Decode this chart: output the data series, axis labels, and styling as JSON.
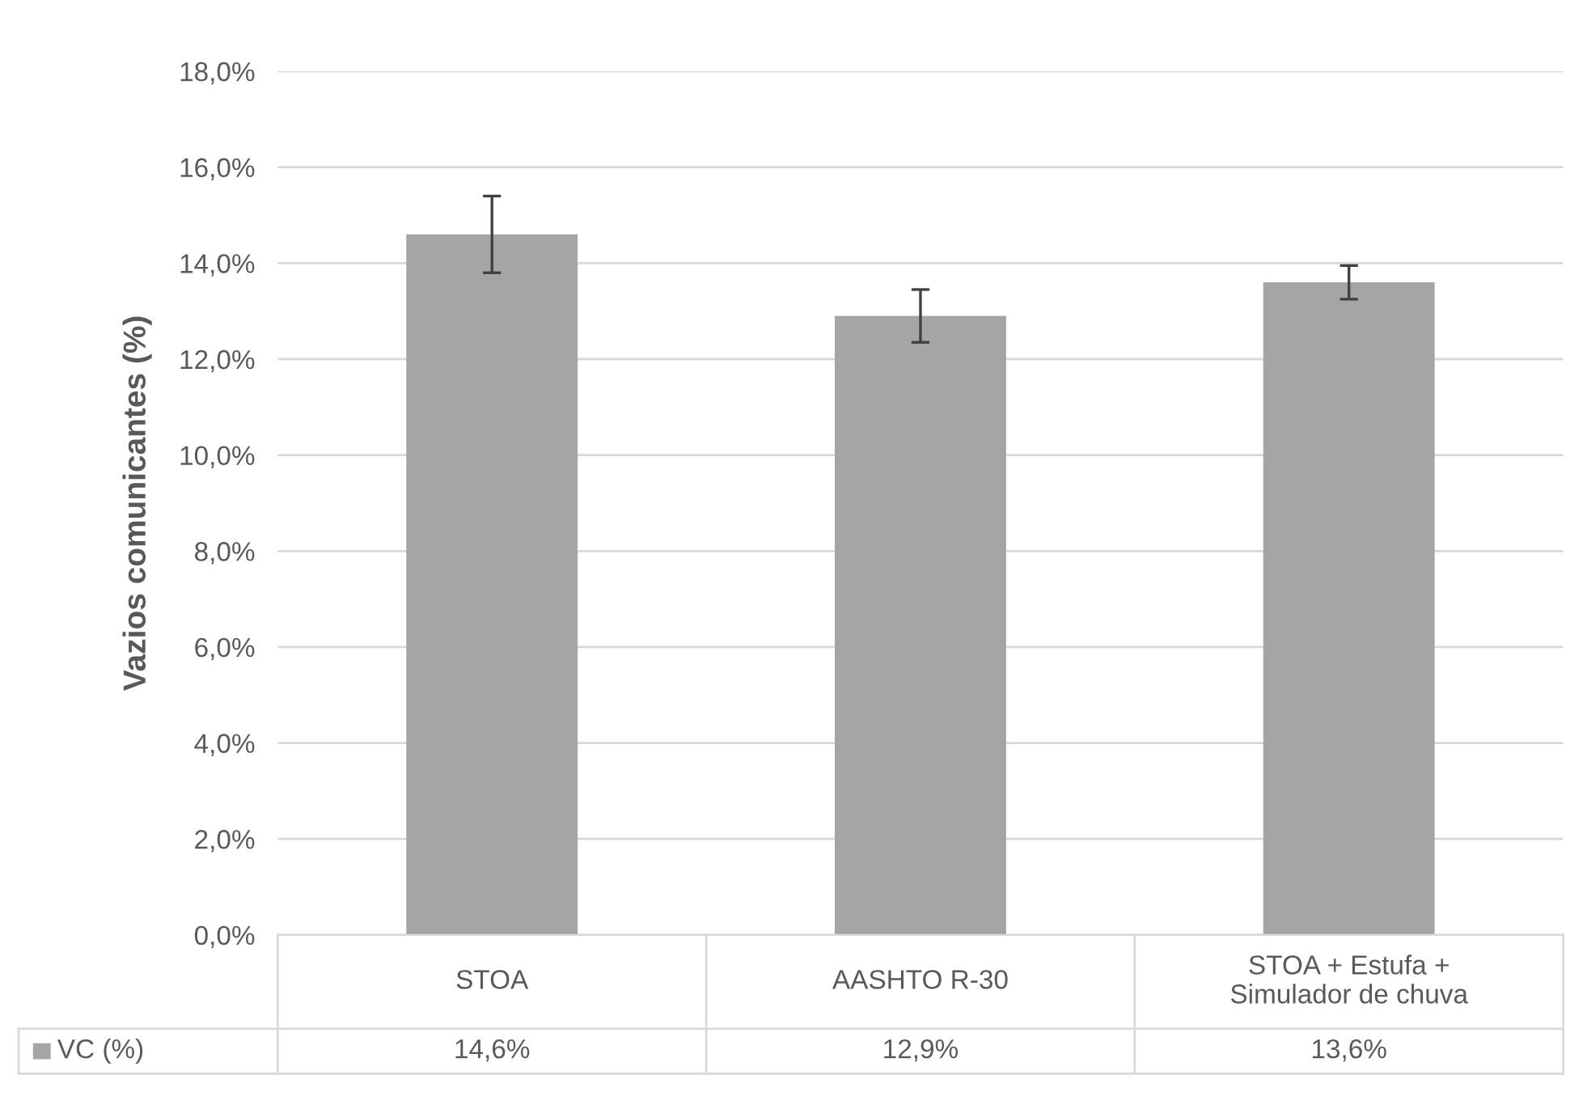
{
  "chart_data": {
    "type": "bar",
    "ylabel": "Vazios comunicantes (%)",
    "categories": [
      "STOA",
      "AASHTO R-30",
      "STOA + Estufa +\nSimulador de chuva"
    ],
    "series": [
      {
        "name": "VC (%)",
        "color": "#a5a5a5",
        "values": [
          14.6,
          12.9,
          13.6
        ],
        "errors": [
          0.8,
          0.55,
          0.35
        ],
        "value_labels": [
          "14,6%",
          "12,9%",
          "13,6%"
        ]
      }
    ],
    "ylim": [
      0,
      18
    ],
    "yticks": [
      {
        "value": 0,
        "label": "0,0%"
      },
      {
        "value": 2,
        "label": "2,0%"
      },
      {
        "value": 4,
        "label": "4,0%"
      },
      {
        "value": 6,
        "label": "6,0%"
      },
      {
        "value": 8,
        "label": "8,0%"
      },
      {
        "value": 10,
        "label": "10,0%"
      },
      {
        "value": 12,
        "label": "12,0%"
      },
      {
        "value": 14,
        "label": "14,0%"
      },
      {
        "value": 16,
        "label": "16,0%"
      },
      {
        "value": 18,
        "label": "18,0%"
      }
    ],
    "grid": "y",
    "legend": "bottom"
  }
}
